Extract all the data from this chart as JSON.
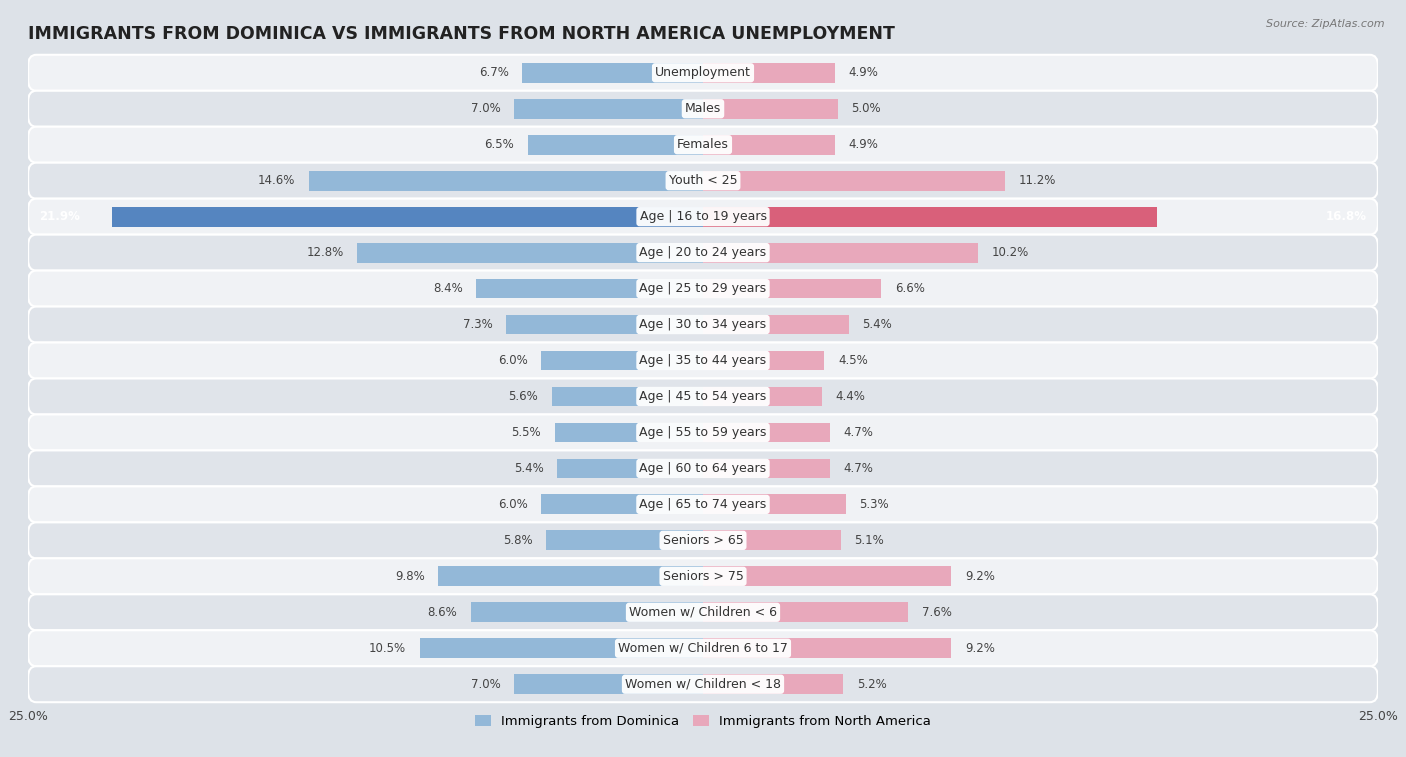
{
  "title": "IMMIGRANTS FROM DOMINICA VS IMMIGRANTS FROM NORTH AMERICA UNEMPLOYMENT",
  "source": "Source: ZipAtlas.com",
  "categories": [
    "Unemployment",
    "Males",
    "Females",
    "Youth < 25",
    "Age | 16 to 19 years",
    "Age | 20 to 24 years",
    "Age | 25 to 29 years",
    "Age | 30 to 34 years",
    "Age | 35 to 44 years",
    "Age | 45 to 54 years",
    "Age | 55 to 59 years",
    "Age | 60 to 64 years",
    "Age | 65 to 74 years",
    "Seniors > 65",
    "Seniors > 75",
    "Women w/ Children < 6",
    "Women w/ Children 6 to 17",
    "Women w/ Children < 18"
  ],
  "dominica_values": [
    6.7,
    7.0,
    6.5,
    14.6,
    21.9,
    12.8,
    8.4,
    7.3,
    6.0,
    5.6,
    5.5,
    5.4,
    6.0,
    5.8,
    9.8,
    8.6,
    10.5,
    7.0
  ],
  "north_america_values": [
    4.9,
    5.0,
    4.9,
    11.2,
    16.8,
    10.2,
    6.6,
    5.4,
    4.5,
    4.4,
    4.7,
    4.7,
    5.3,
    5.1,
    9.2,
    7.6,
    9.2,
    5.2
  ],
  "dominica_color": "#93b8d8",
  "north_america_color": "#e8a8bb",
  "dominica_highlight_color": "#5585c0",
  "north_america_highlight_color": "#d9607a",
  "highlight_index": 4,
  "xlim": 25.0,
  "row_color_odd": "#f0f2f5",
  "row_color_even": "#e0e4ea",
  "bg_color": "#dde2e8",
  "title_fontsize": 12.5,
  "label_fontsize": 9,
  "value_fontsize": 8.5,
  "legend_fontsize": 9.5
}
